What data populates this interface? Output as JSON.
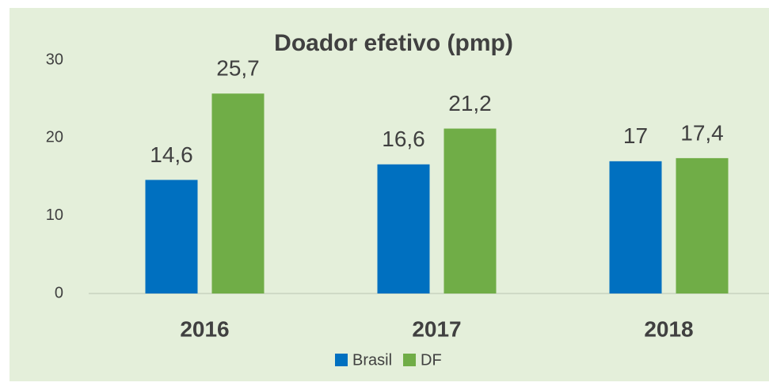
{
  "chart_data": {
    "type": "bar",
    "title": "Doador efetivo (pmp)",
    "categories": [
      "2016",
      "2017",
      "2018"
    ],
    "series": [
      {
        "name": "Brasil",
        "color": "#0070c0",
        "values": [
          14.6,
          16.6,
          17
        ],
        "value_labels": [
          "14,6",
          "16,6",
          "17"
        ]
      },
      {
        "name": "DF",
        "color": "#70ad47",
        "values": [
          25.7,
          21.2,
          17.4
        ],
        "value_labels": [
          "25,7",
          "21,2",
          "17,4"
        ]
      }
    ],
    "ylim": [
      0,
      30
    ],
    "yticks": [
      0,
      10,
      20,
      30
    ],
    "grid": false,
    "legend": "bottom"
  }
}
